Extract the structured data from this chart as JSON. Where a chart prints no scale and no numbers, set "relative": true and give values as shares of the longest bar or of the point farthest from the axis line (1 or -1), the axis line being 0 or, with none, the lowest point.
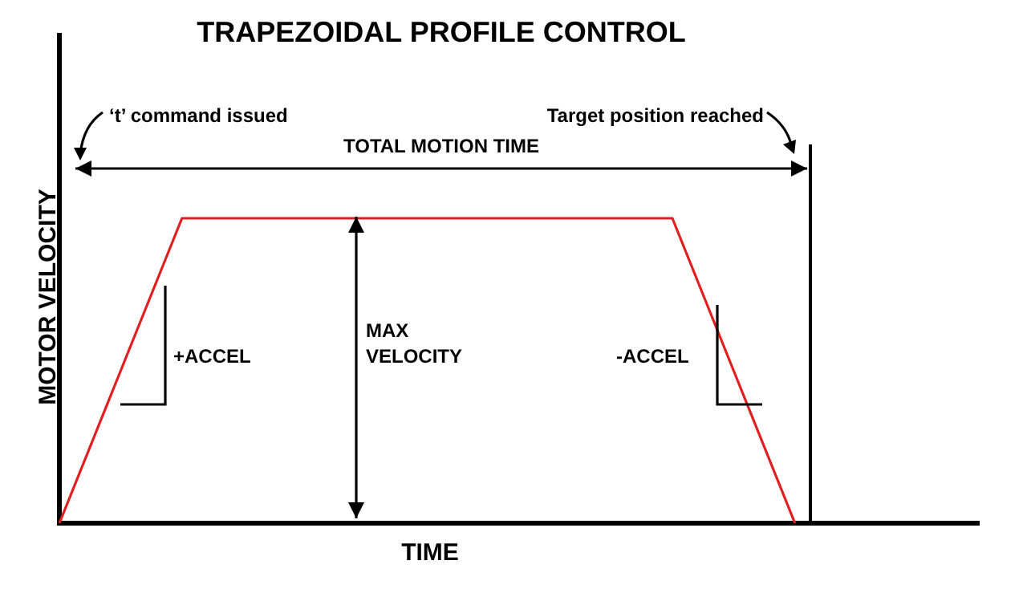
{
  "chart_data": {
    "type": "line",
    "title": "TRAPEZOIDAL PROFILE CONTROL",
    "xlabel": "TIME",
    "ylabel": "MOTOR VELOCITY",
    "relative": true,
    "tick_labels": false,
    "grid": false,
    "legend": false,
    "marker": "none",
    "categories": [
      null,
      null,
      null,
      null,
      null,
      null,
      null,
      null,
      null,
      null,
      null,
      null,
      null,
      null,
      null,
      null
    ],
    "series": [
      {
        "color": "#e02020",
        "values": [
          0,
          0.5,
          1,
          1,
          1,
          1,
          1,
          1,
          1,
          1,
          1,
          0.5,
          0,
          null,
          null,
          null
        ]
      }
    ],
    "annotations": [
      "‘t’ command issued",
      "Target position reached",
      "TOTAL MOTION TIME",
      "+ACCEL",
      "MAX VELOCITY",
      "-ACCEL"
    ]
  }
}
